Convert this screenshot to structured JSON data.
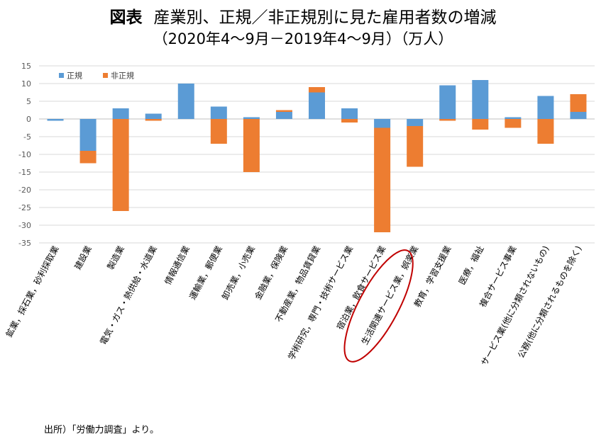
{
  "figure": {
    "title_lead": "図表",
    "title_main": "産業別、正規／非正規別に見た雇用者数の増減",
    "subtitle": "（2020年4～9月－2019年4～9月）（万人）",
    "source": "出所）「労働力調査」より。"
  },
  "chart_data": {
    "type": "bar",
    "stacked": true,
    "title": "産業別、正規／非正規別に見た雇用者数の増減",
    "xlabel": "",
    "ylabel": "",
    "ylim": [
      -35,
      15
    ],
    "yticks": [
      15,
      10,
      5,
      0,
      -5,
      -10,
      -15,
      -20,
      -25,
      -30,
      -35
    ],
    "grid": true,
    "legend_position": "top-left",
    "categories": [
      "鉱業，採石業，砂利採取業",
      "建設業",
      "製造業",
      "電気・ガス・熱供給・水道業",
      "情報通信業",
      "運輸業，郵便業",
      "卸売業，小売業",
      "金融業，保険業",
      "不動産業，物品賃貸業",
      "学術研究，専門・技術サービス業",
      "宿泊業，飲食サービス業",
      "生活関連サービス業，娯楽業",
      "教育，学習支援業",
      "医療，福祉",
      "複合サービス事業",
      "サービス業(他に分類されないもの)",
      "公務(他に分類されるものを除く)"
    ],
    "series": [
      {
        "name": "正規",
        "color": "#5b9bd5",
        "values": [
          -0.5,
          -9,
          3,
          1.5,
          10,
          3.5,
          0.5,
          2,
          7.5,
          3,
          -2.5,
          -2,
          9.5,
          11,
          0.5,
          6.5,
          2
        ]
      },
      {
        "name": "非正規",
        "color": "#ed7d31",
        "values": [
          0,
          -3.5,
          -26,
          -0.5,
          0,
          -7,
          -15,
          0.5,
          1.5,
          -1,
          -29.5,
          -11.5,
          -0.5,
          -3,
          -2.5,
          -7,
          5
        ]
      }
    ],
    "highlight": {
      "category_index": 10,
      "shape": "ellipse",
      "color": "#c00000"
    }
  }
}
